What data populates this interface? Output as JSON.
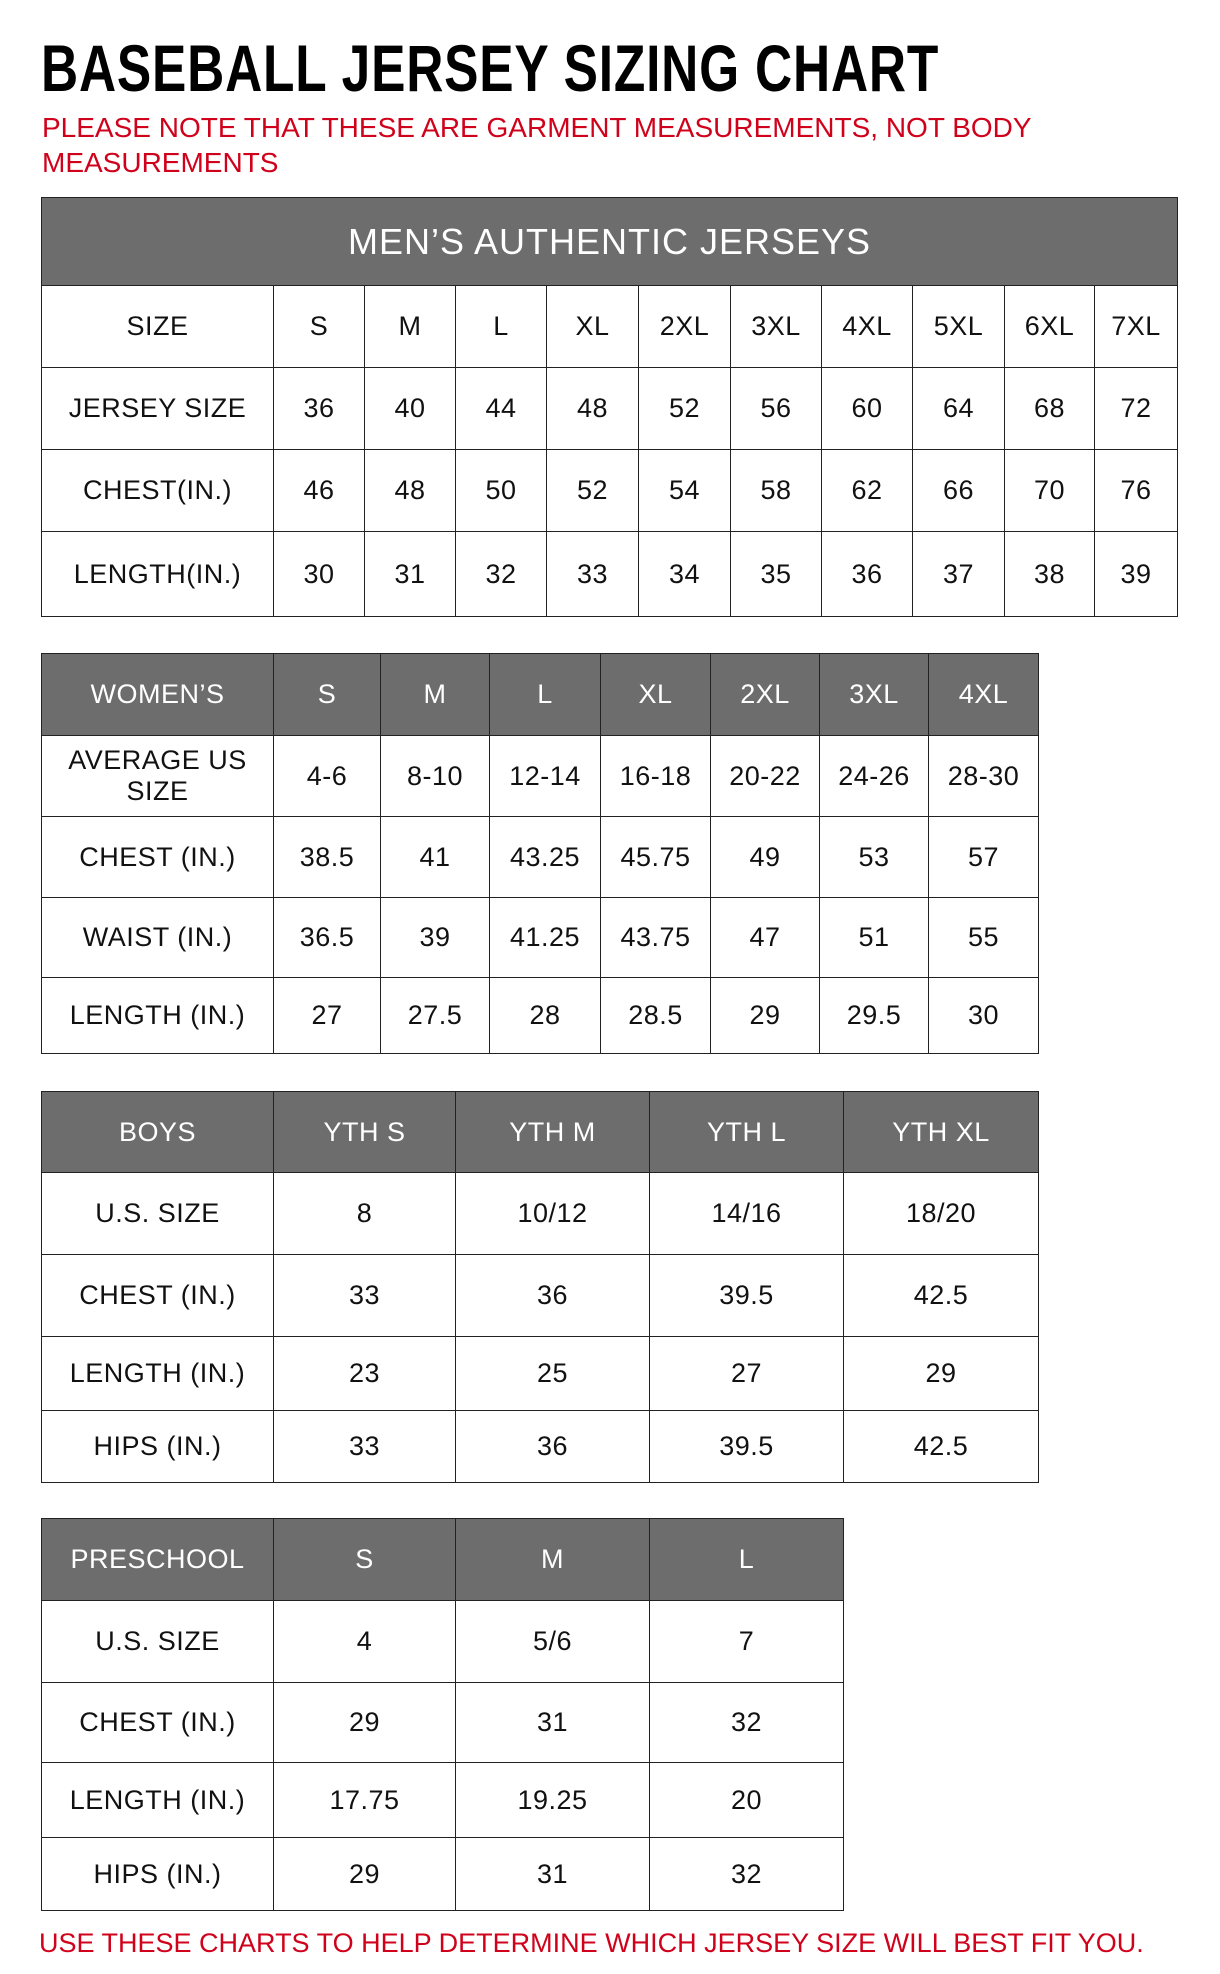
{
  "title": "BASEBALL JERSEY SIZING CHART",
  "note": "PLEASE NOTE THAT THESE ARE GARMENT MEASUREMENTS, NOT BODY MEASUREMENTS",
  "footer": "USE THESE CHARTS TO HELP DETERMINE WHICH JERSEY SIZE WILL BEST FIT YOU.",
  "colors": {
    "header_bg": "#6d6d6d",
    "accent_red": "#d0021b"
  },
  "tables": [
    {
      "banner": "MEN’S AUTHENTIC JERSEYS",
      "header": [
        "SIZE",
        "S",
        "M",
        "L",
        "XL",
        "2XL",
        "3XL",
        "4XL",
        "5XL",
        "6XL",
        "7XL"
      ],
      "rows": [
        [
          "JERSEY SIZE",
          "36",
          "40",
          "44",
          "48",
          "52",
          "56",
          "60",
          "64",
          "68",
          "72"
        ],
        [
          "CHEST(IN.)",
          "46",
          "48",
          "50",
          "52",
          "54",
          "58",
          "62",
          "66",
          "70",
          "76"
        ],
        [
          "LENGTH(IN.)",
          "30",
          "31",
          "32",
          "33",
          "34",
          "35",
          "36",
          "37",
          "38",
          "39"
        ]
      ]
    },
    {
      "header": [
        "WOMEN’S",
        "S",
        "M",
        "L",
        "XL",
        "2XL",
        "3XL",
        "4XL"
      ],
      "rows": [
        [
          "AVERAGE US SIZE",
          "4-6",
          "8-10",
          "12-14",
          "16-18",
          "20-22",
          "24-26",
          "28-30"
        ],
        [
          "CHEST (IN.)",
          "38.5",
          "41",
          "43.25",
          "45.75",
          "49",
          "53",
          "57"
        ],
        [
          "WAIST (IN.)",
          "36.5",
          "39",
          "41.25",
          "43.75",
          "47",
          "51",
          "55"
        ],
        [
          "LENGTH (IN.)",
          "27",
          "27.5",
          "28",
          "28.5",
          "29",
          "29.5",
          "30"
        ]
      ]
    },
    {
      "header": [
        "BOYS",
        "YTH S",
        "YTH M",
        "YTH L",
        "YTH XL"
      ],
      "rows": [
        [
          "U.S. SIZE",
          "8",
          "10/12",
          "14/16",
          "18/20"
        ],
        [
          "CHEST (IN.)",
          "33",
          "36",
          "39.5",
          "42.5"
        ],
        [
          "LENGTH (IN.)",
          "23",
          "25",
          "27",
          "29"
        ],
        [
          "HIPS (IN.)",
          "33",
          "36",
          "39.5",
          "42.5"
        ]
      ]
    },
    {
      "header": [
        "PRESCHOOL",
        "S",
        "M",
        "L"
      ],
      "rows": [
        [
          "U.S. SIZE",
          "4",
          "5/6",
          "7"
        ],
        [
          "CHEST (IN.)",
          "29",
          "31",
          "32"
        ],
        [
          "LENGTH (IN.)",
          "17.75",
          "19.25",
          "20"
        ],
        [
          "HIPS (IN.)",
          "29",
          "31",
          "32"
        ]
      ]
    }
  ]
}
